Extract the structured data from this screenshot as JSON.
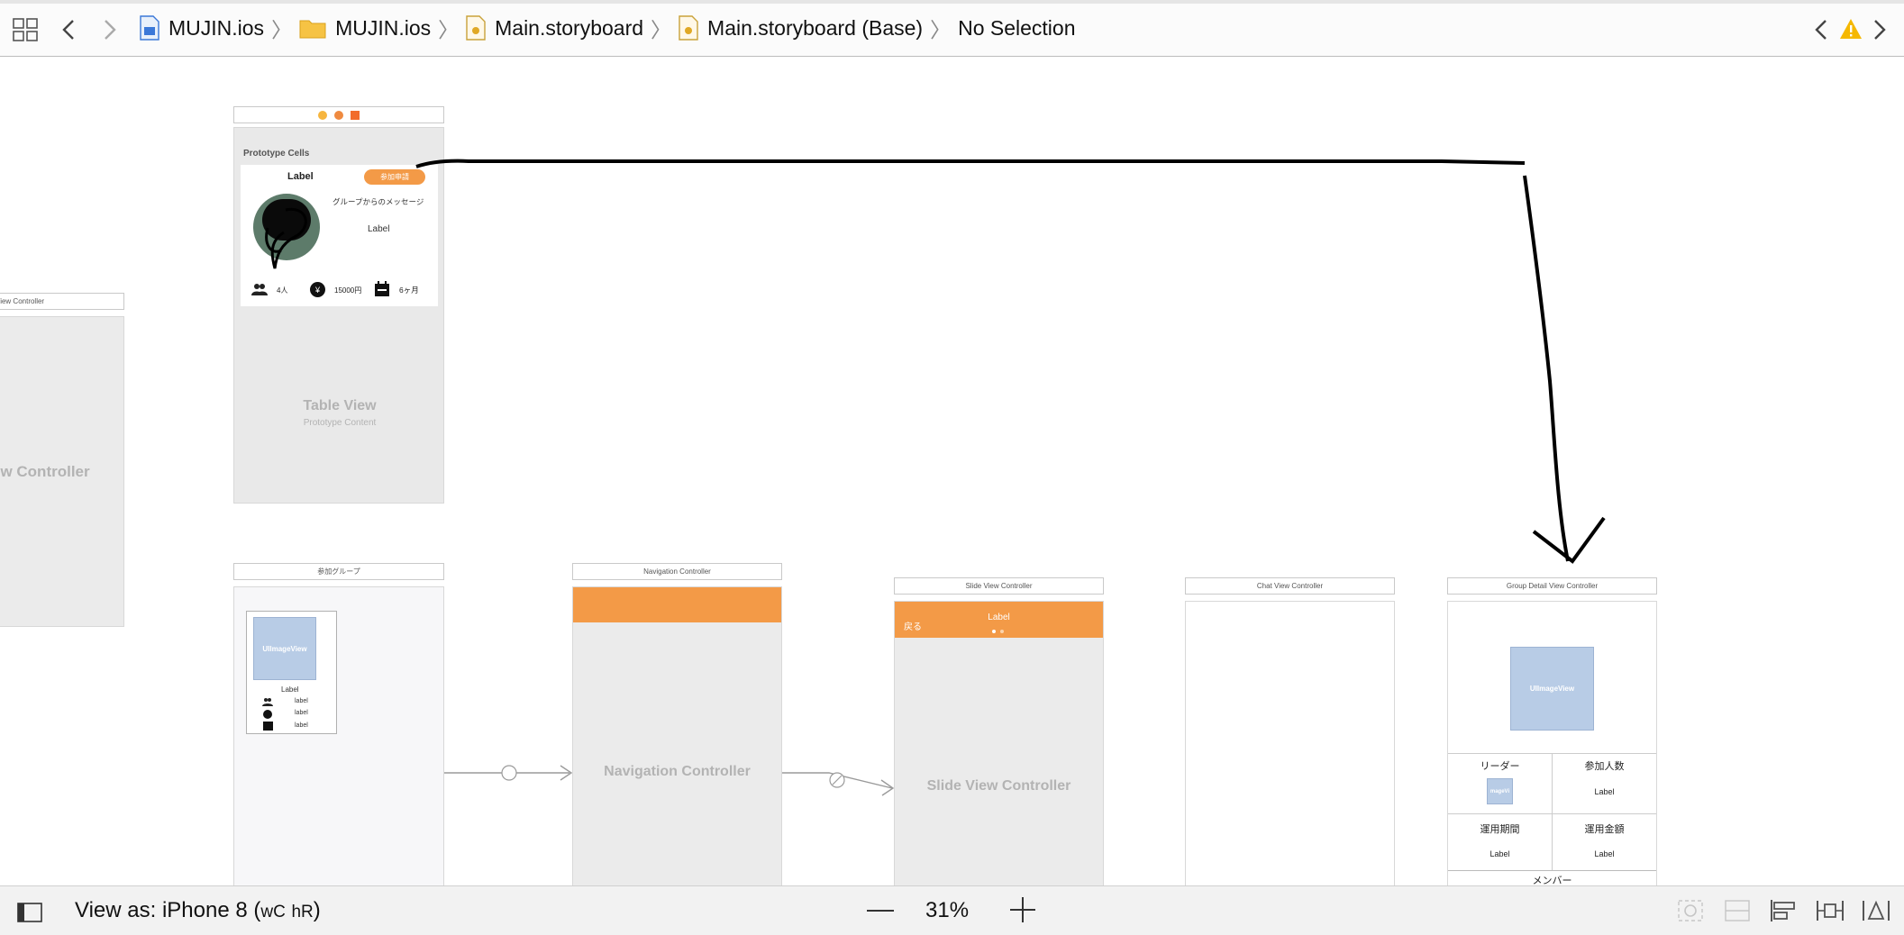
{
  "breadcrumbs": [
    {
      "label": "MUJIN.ios",
      "icon": "project-file-icon"
    },
    {
      "label": "MUJIN.ios",
      "icon": "folder-icon"
    },
    {
      "label": "Main.storyboard",
      "icon": "storyboard-file-icon"
    },
    {
      "label": "Main.storyboard (Base)",
      "icon": "storyboard-file-icon"
    },
    {
      "label": "No Selection",
      "icon": ""
    }
  ],
  "colors": {
    "accent": "#f39a47",
    "image_placeholder": "#b8cce6",
    "canvas_scene": "#ebebeb"
  },
  "scenes": {
    "left_partial": {
      "title": "View Controller",
      "placeholder": "ew Controller"
    },
    "table": {
      "prototype_header": "Prototype Cells",
      "cell_label": "Label",
      "join_button": "参加申請",
      "message": "グループからのメッセージ",
      "message_label": "Label",
      "members": "4人",
      "amount": "15000円",
      "period": "6ヶ月",
      "yen_symbol": "¥",
      "placeholder": "Table View",
      "placeholder_sub": "Prototype Content"
    },
    "joined": {
      "title": "参加グループ",
      "image": "UIImageView",
      "label": "Label",
      "row1": "label",
      "row2": "label",
      "row3": "label"
    },
    "nav": {
      "title": "Navigation Controller",
      "placeholder": "Navigation Controller"
    },
    "slide": {
      "title": "Slide View Controller",
      "back": "戻る",
      "label": "Label",
      "placeholder": "Slide View Controller"
    },
    "chat": {
      "title": "Chat View Controller"
    },
    "group_detail": {
      "title": "Group Detail View Controller",
      "image": "UIImageView",
      "leader": "リーダー",
      "leader_image": "mageVi",
      "members_title": "参加人数",
      "members_value": "Label",
      "period_title": "運用期間",
      "period_value": "Label",
      "amount_title": "運用金額",
      "amount_value": "Label",
      "member_section": "メンバー"
    }
  },
  "bottom": {
    "view_as_prefix": "View as: iPhone 8 (",
    "wc": "wC",
    "hr": "hR",
    "view_as_suffix": ")",
    "zoom": "31%"
  }
}
